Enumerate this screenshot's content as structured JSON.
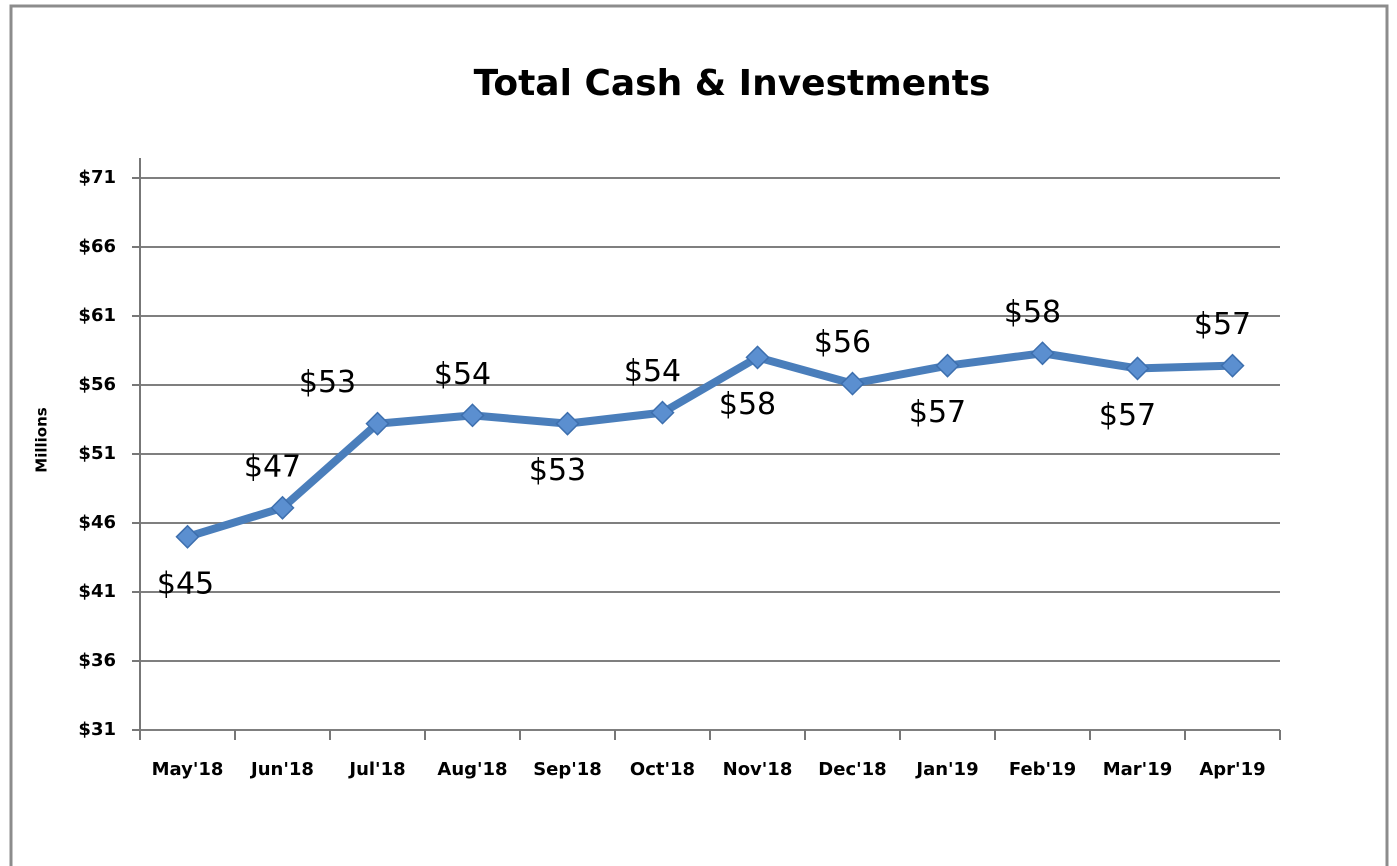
{
  "chart_data": {
    "type": "line",
    "title": "Total Cash & Investments",
    "y_label": "Millions",
    "categories": [
      "May'18",
      "Jun'18",
      "Jul'18",
      "Aug'18",
      "Sep'18",
      "Oct'18",
      "Nov'18",
      "Dec'18",
      "Jan'19",
      "Feb'19",
      "Mar'19",
      "Apr'19"
    ],
    "series": [
      {
        "name": "Total Cash & Investments",
        "color": "#4a7ebb",
        "values": [
          45.0,
          47.1,
          53.2,
          53.8,
          53.2,
          54.0,
          58.0,
          56.1,
          57.4,
          58.3,
          57.2,
          57.4
        ],
        "value_labels": [
          "$45",
          "$47",
          "$53",
          "$54",
          "$53",
          "$54",
          "$58",
          "$56",
          "$57",
          "$58",
          "$57",
          "$57"
        ]
      }
    ],
    "ylim": [
      31,
      71
    ],
    "yticks": [
      {
        "value": 31,
        "label": "$31"
      },
      {
        "value": 36,
        "label": "$36"
      },
      {
        "value": 41,
        "label": "$41"
      },
      {
        "value": 46,
        "label": "$46"
      },
      {
        "value": 51,
        "label": "$51"
      },
      {
        "value": 56,
        "label": "$56"
      },
      {
        "value": 61,
        "label": "$61"
      },
      {
        "value": 66,
        "label": "$66"
      },
      {
        "value": 71,
        "label": "$71"
      }
    ],
    "grid": true
  }
}
